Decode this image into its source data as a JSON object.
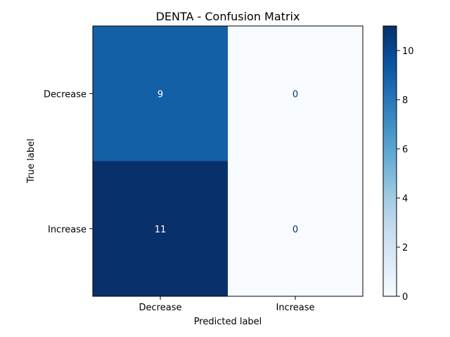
{
  "chart_data": {
    "type": "heatmap",
    "title": "DENTA - Confusion Matrix",
    "xlabel": "Predicted label",
    "ylabel": "True label",
    "x_categories": [
      "Decrease",
      "Increase"
    ],
    "y_categories": [
      "Decrease",
      "Increase"
    ],
    "values": [
      [
        9,
        0
      ],
      [
        11,
        0
      ]
    ],
    "colormap": "Blues",
    "color_range": [
      0,
      11
    ],
    "colorbar_ticks": [
      0,
      2,
      4,
      6,
      8,
      10
    ],
    "grid": false,
    "colors": {
      "low": "#f7fbff",
      "high": "#08306b",
      "text_on_dark": "#ffffff",
      "text_on_light": "#08306b"
    }
  }
}
